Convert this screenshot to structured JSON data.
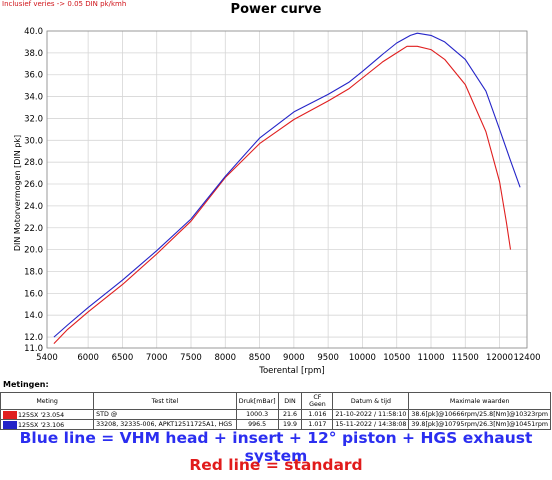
{
  "corner_note": "Inclusief veries -> 0.05 DIN pk/kmh",
  "chart_data": {
    "type": "line",
    "title": "Power curve",
    "xlabel": "Toerental [rpm]",
    "ylabel": "DIN Motorvermogen [DIN pk]",
    "xlim": [
      5400,
      12400
    ],
    "ylim": [
      11.0,
      40.0
    ],
    "x_ticks": [
      5400,
      6000,
      6500,
      7000,
      7500,
      8000,
      8500,
      9000,
      9500,
      10000,
      10500,
      11000,
      11500,
      12000,
      12400
    ],
    "y_ticks": [
      11.0,
      12.0,
      14.0,
      16.0,
      18.0,
      20.0,
      22.0,
      24.0,
      26.0,
      28.0,
      30.0,
      32.0,
      34.0,
      36.0,
      38.0,
      40.0
    ],
    "grid": true,
    "series": [
      {
        "color": "#e01f1f",
        "x": [
          5500,
          5700,
          6000,
          6500,
          7000,
          7500,
          8000,
          8500,
          9000,
          9500,
          9800,
          10000,
          10300,
          10500,
          10650,
          10800,
          11000,
          11200,
          11500,
          11800,
          12000,
          12100,
          12160
        ],
        "y": [
          11.4,
          12.7,
          14.3,
          16.8,
          19.6,
          22.6,
          26.6,
          29.7,
          31.9,
          33.6,
          34.7,
          35.7,
          37.2,
          38.0,
          38.6,
          38.6,
          38.3,
          37.4,
          35.1,
          30.8,
          26.2,
          22.5,
          20.0
        ]
      },
      {
        "color": "#2525c8",
        "x": [
          5500,
          5700,
          6000,
          6500,
          7000,
          7500,
          8000,
          8500,
          9000,
          9500,
          9800,
          10000,
          10300,
          10500,
          10700,
          10800,
          11000,
          11200,
          11500,
          11800,
          12000,
          12150,
          12300
        ],
        "y": [
          12.0,
          13.1,
          14.7,
          17.2,
          19.9,
          22.8,
          26.7,
          30.2,
          32.6,
          34.2,
          35.3,
          36.3,
          37.9,
          38.9,
          39.6,
          39.8,
          39.6,
          39.0,
          37.4,
          34.5,
          31.0,
          28.3,
          25.7
        ]
      }
    ]
  },
  "table": {
    "section_label": "Metingen:",
    "headers": [
      "Meting",
      "Test titel",
      "Druk[mBar]",
      "DIN",
      "CF Geen",
      "Datum & tijd",
      "Maximale waarden"
    ],
    "rows": [
      {
        "color": "#e01f1f",
        "meting": "125SX '23.054",
        "titel": "STD   @",
        "druk": "1000.3",
        "din": "21.6",
        "cf": "1.016",
        "datum": "21-10-2022 / 11:58:10",
        "max": "38.6[pk]@10666rpm/25.8[Nm]@10323rpm"
      },
      {
        "color": "#2525c8",
        "meting": "125SX '23.106",
        "titel": "33208, 32335-006, APKT12511725A1, HGS",
        "druk": "996.5",
        "din": "19.9",
        "cf": "1.017",
        "datum": "15-11-2022 / 14:38:08",
        "max": "39.8[pk]@10795rpm/26.3[Nm]@10451rpm"
      }
    ]
  },
  "captions": {
    "blue": "Blue line = VHM head + insert + 12° piston + HGS exhaust system",
    "red": "Red line = standard"
  }
}
